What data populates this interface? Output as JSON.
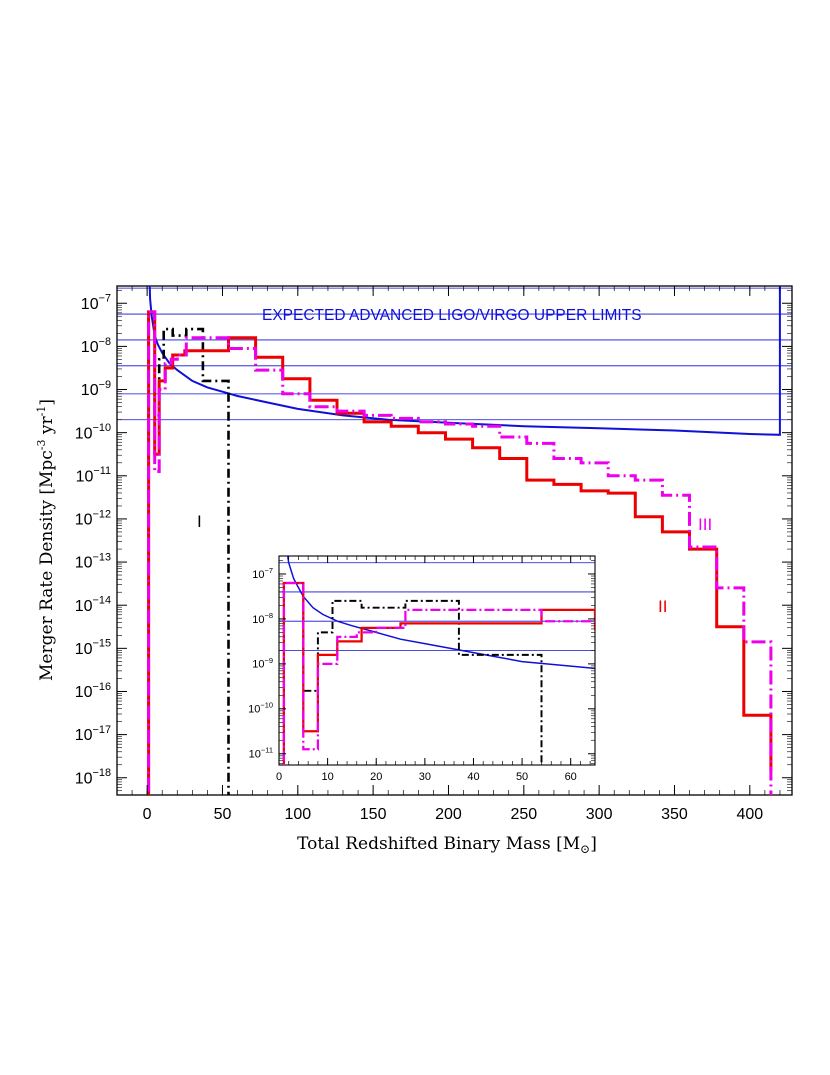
{
  "chart_data": {
    "type": "line",
    "xlabel_main": "Total Redshifted Binary Mass [M",
    "xlabel_sub": "⊙",
    "xlabel_close": "]",
    "ylabel": "Merger Rate Density [Mpc",
    "ylabel_sup": "-3",
    "ylabel_mid": " yr",
    "ylabel_sup2": "-1",
    "ylabel_close": "]",
    "annotation": "EXPECTED ADVANCED LIGO/VIRGO UPPER LIMITS",
    "labels": {
      "I": "I",
      "II": "II",
      "III": "III"
    },
    "main": {
      "xlim": [
        -20,
        428
      ],
      "ylog_lim": [
        -18.4,
        -6.6
      ],
      "xticks": [
        0,
        50,
        100,
        150,
        200,
        250,
        300,
        350,
        400
      ],
      "xtick_labels": [
        "0",
        "50",
        "100",
        "150",
        "200",
        "250",
        "300",
        "350",
        "400"
      ],
      "ytick_exps": [
        -7,
        -8,
        -9,
        -10,
        -11,
        -12,
        -13,
        -14,
        -15,
        -16,
        -17,
        -18
      ],
      "hlines_log": [
        -6.65,
        -7.25,
        -7.85,
        -8.45,
        -9.1,
        -9.7
      ]
    },
    "inset": {
      "xlim": [
        0,
        65
      ],
      "ylog_lim": [
        -11.25,
        -6.6
      ],
      "xticks": [
        0,
        10,
        20,
        30,
        40,
        50,
        60
      ],
      "xtick_labels": [
        "0",
        "10",
        "20",
        "30",
        "40",
        "50",
        "60"
      ],
      "ytick_exps": [
        -7,
        -8,
        -9,
        -10,
        -11
      ],
      "hlines_log": [
        -6.75,
        -7.4,
        -8.05,
        -8.7
      ]
    },
    "colors": {
      "blue": "#1010d8",
      "black": "#000000",
      "red": "#ee0000",
      "magenta": "#ee00ee"
    },
    "series": [
      {
        "key": "ligo",
        "style": "curve",
        "x": [
          1.5,
          2,
          3,
          5,
          7,
          10,
          15,
          20,
          30,
          40,
          50,
          60,
          80,
          100,
          130,
          160,
          200,
          250,
          300,
          350,
          400,
          420
        ],
        "log_y": [
          -6.35,
          -6.9,
          -7.3,
          -7.75,
          -7.95,
          -8.15,
          -8.4,
          -8.55,
          -8.8,
          -8.95,
          -9.05,
          -9.15,
          -9.3,
          -9.45,
          -9.6,
          -9.7,
          -9.77,
          -9.85,
          -9.9,
          -9.95,
          -10.03,
          -10.05
        ]
      },
      {
        "key": "I",
        "style": "step",
        "edges": [
          0,
          1,
          5,
          8,
          11,
          14,
          17,
          26,
          37,
          54
        ],
        "log_y": [
          -19,
          -7.2,
          -9.6,
          -8.3,
          -7.6,
          -7.6,
          -7.75,
          -7.6,
          -8.8,
          -19
        ]
      },
      {
        "key": "II",
        "style": "step",
        "edges": [
          0,
          1,
          5,
          8,
          12,
          17,
          25,
          54,
          72,
          90,
          108,
          126,
          144,
          162,
          180,
          198,
          216,
          234,
          252,
          270,
          288,
          306,
          324,
          342,
          360,
          378,
          396,
          414
        ],
        "log_y": [
          -19,
          -7.2,
          -10.5,
          -8.8,
          -8.5,
          -8.2,
          -8.1,
          -7.8,
          -8.25,
          -8.75,
          -9.25,
          -9.55,
          -9.75,
          -9.85,
          -10,
          -10.15,
          -10.35,
          -10.6,
          -11.1,
          -11.2,
          -11.35,
          -11.4,
          -11.95,
          -12.3,
          -12.7,
          -14.5,
          -16.55,
          -17.85
        ]
      },
      {
        "key": "III",
        "style": "step",
        "edges": [
          0,
          1,
          5,
          8,
          12,
          16,
          20,
          26,
          54,
          72,
          90,
          108,
          126,
          144,
          162,
          180,
          198,
          216,
          234,
          252,
          270,
          288,
          306,
          324,
          342,
          360,
          378,
          396,
          414
        ],
        "log_y": [
          -19,
          -7.2,
          -10.9,
          -9,
          -8.4,
          -8.3,
          -8.2,
          -7.8,
          -8.05,
          -8.55,
          -9.1,
          -9.4,
          -9.5,
          -9.6,
          -9.67,
          -9.75,
          -9.8,
          -9.85,
          -10.1,
          -10.25,
          -10.6,
          -10.7,
          -11,
          -11.1,
          -11.45,
          -12.65,
          -13.6,
          -14.85,
          -19
        ]
      }
    ],
    "inset_series": [
      {
        "key": "ligo",
        "style": "curve",
        "x": [
          1.5,
          2,
          3,
          4,
          5,
          7,
          9,
          12,
          15,
          20,
          25,
          30,
          35,
          40,
          45,
          50,
          55,
          60,
          65
        ],
        "log_y": [
          -6.4,
          -6.75,
          -7.1,
          -7.3,
          -7.5,
          -7.75,
          -7.9,
          -8.05,
          -8.15,
          -8.3,
          -8.45,
          -8.55,
          -8.65,
          -8.75,
          -8.85,
          -8.95,
          -9.0,
          -9.05,
          -9.1
        ]
      },
      {
        "key": "I",
        "style": "step",
        "edges": [
          0,
          1,
          5,
          8,
          11,
          14,
          17,
          26,
          37,
          54
        ],
        "log_y": [
          -12,
          -7.2,
          -9.6,
          -8.3,
          -7.6,
          -7.6,
          -7.75,
          -7.6,
          -8.8,
          -12
        ]
      },
      {
        "key": "II",
        "style": "step",
        "edges": [
          0,
          1,
          5,
          8,
          12,
          17,
          25,
          54,
          65
        ],
        "log_y": [
          -12,
          -7.2,
          -10.5,
          -8.8,
          -8.5,
          -8.2,
          -8.1,
          -7.8,
          -8.25
        ]
      },
      {
        "key": "III",
        "style": "step",
        "edges": [
          0,
          1,
          5,
          8,
          12,
          16,
          20,
          26,
          54,
          65
        ],
        "log_y": [
          -12,
          -7.2,
          -10.9,
          -9,
          -8.4,
          -8.3,
          -8.2,
          -7.8,
          -8.05
        ]
      }
    ]
  }
}
